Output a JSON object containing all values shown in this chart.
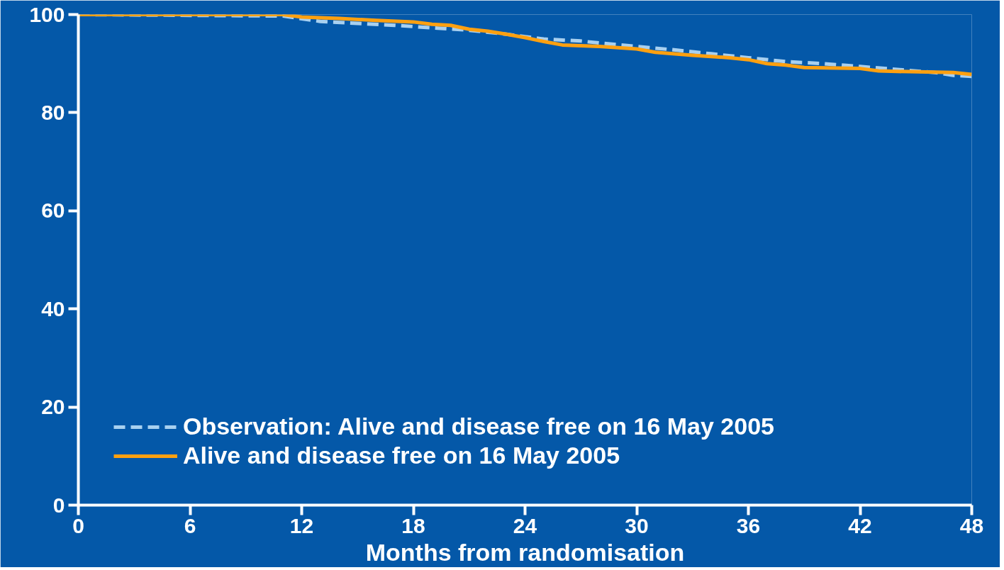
{
  "chart_data": {
    "type": "line",
    "xlabel": "Months from randomisation",
    "xlim": [
      0,
      48
    ],
    "ylim": [
      0,
      100
    ],
    "xticks": [
      0,
      6,
      12,
      18,
      24,
      30,
      36,
      42,
      48
    ],
    "yticks": [
      0,
      20,
      40,
      60,
      80,
      100
    ],
    "grid": false,
    "legend": "bottom left",
    "marker": "none",
    "series": [
      {
        "name": "Observation: Alive and disease free on 16 May 2005",
        "color": "#a8d0f0",
        "line_style": "dashed",
        "x": [
          0,
          11,
          13,
          15,
          17,
          19,
          21,
          23,
          24,
          25,
          27,
          28,
          30,
          32,
          34,
          36,
          38,
          40,
          42,
          44,
          46,
          47,
          48
        ],
        "values": [
          100,
          99.7,
          98.6,
          98.2,
          97.8,
          97.3,
          96.8,
          96,
          95.5,
          95,
          94.6,
          94.2,
          93.5,
          92.8,
          92,
          91.2,
          90.4,
          90,
          89.4,
          88.8,
          88.2,
          87.6,
          87.4
        ]
      },
      {
        "name": "Alive and disease free on 16 May 2005",
        "color": "#ffa010",
        "line_style": "solid",
        "x": [
          0,
          6,
          7,
          11,
          12,
          14,
          16,
          18,
          19,
          20,
          21,
          22,
          23,
          24,
          25,
          26,
          28,
          30,
          31,
          33,
          35,
          36,
          37,
          38,
          39,
          42,
          43,
          44,
          47,
          48
        ],
        "values": [
          100,
          100,
          100,
          100,
          99.5,
          99.2,
          98.8,
          98.5,
          98,
          97.8,
          97,
          96.6,
          96,
          95.3,
          94.5,
          93.8,
          93.5,
          93,
          92.3,
          91.7,
          91.2,
          90.8,
          90,
          89.7,
          89.2,
          89,
          88.5,
          88.4,
          88.2,
          87.8
        ]
      }
    ]
  }
}
